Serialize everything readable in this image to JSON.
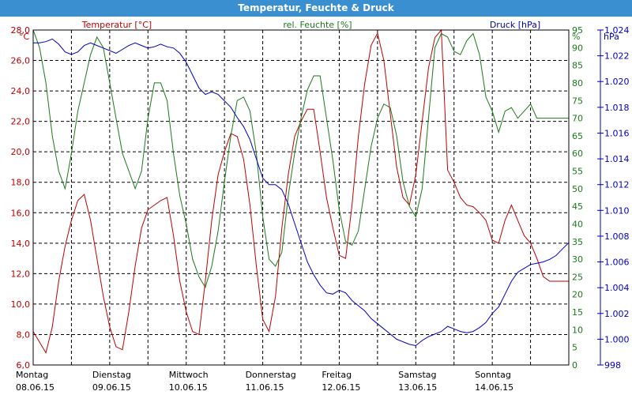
{
  "window": {
    "title": "Temperatur, Feuchte & Druck"
  },
  "chart_data": {
    "type": "line",
    "title": "Temperatur, Feuchte & Druck",
    "grid": true,
    "colors": {
      "temperature": "#c00000",
      "humidity": "#1a7a1a",
      "pressure": "#0000c0",
      "title_bar": "#3a8fd0"
    },
    "series_labels": {
      "temperature": "Temperatur [°C]",
      "humidity": "rel. Feuchte [%]",
      "pressure": "Druck [hPa]"
    },
    "axes": {
      "left": {
        "unit": "°C",
        "range": [
          6.0,
          28.0
        ],
        "ticks": [
          "6,0",
          "8,0",
          "10,0",
          "12,0",
          "14,0",
          "16,0",
          "18,0",
          "20,0",
          "22,0",
          "24,0",
          "26,0",
          "28,0"
        ]
      },
      "mid": {
        "unit": "%",
        "range": [
          0,
          95
        ],
        "ticks": [
          "0",
          "5",
          "10",
          "15",
          "20",
          "25",
          "30",
          "35",
          "40",
          "45",
          "50",
          "55",
          "60",
          "65",
          "70",
          "75",
          "80",
          "85",
          "90",
          "95"
        ]
      },
      "right": {
        "unit": "hPa",
        "range": [
          998,
          1024
        ],
        "ticks": [
          "998",
          "1.000",
          "1.002",
          "1.004",
          "1.006",
          "1.008",
          "1.010",
          "1.012",
          "1.014",
          "1.016",
          "1.018",
          "1.020",
          "1.022",
          "1.024"
        ]
      }
    },
    "days": [
      {
        "day": "Montag",
        "date": "08.06.15"
      },
      {
        "day": "Dienstag",
        "date": "09.06.15"
      },
      {
        "day": "Mittwoch",
        "date": "10.06.15"
      },
      {
        "day": "Donnerstag",
        "date": "11.06.15"
      },
      {
        "day": "Freitag",
        "date": "12.06.15"
      },
      {
        "day": "Samstag",
        "date": "13.06.15"
      },
      {
        "day": "Sonntag",
        "date": "14.06.15"
      }
    ],
    "x_hours": [
      0,
      2,
      4,
      6,
      8,
      10,
      12,
      14,
      16,
      18,
      20,
      22,
      24,
      26,
      28,
      30,
      32,
      34,
      36,
      38,
      40,
      42,
      44,
      46,
      48,
      50,
      52,
      54,
      56,
      58,
      60,
      62,
      64,
      66,
      68,
      70,
      72,
      74,
      76,
      78,
      80,
      82,
      84,
      86,
      88,
      90,
      92,
      94,
      96,
      98,
      100,
      102,
      104,
      106,
      108,
      110,
      112,
      114,
      116,
      118,
      120,
      122,
      124,
      126,
      128,
      130,
      132,
      134,
      136,
      138,
      140,
      142,
      144,
      146,
      148,
      150,
      152,
      154,
      156,
      158,
      160,
      162,
      164,
      166,
      168
    ],
    "series": [
      {
        "name": "Temperatur [°C]",
        "axis": "left",
        "values": [
          8.2,
          7.5,
          6.8,
          8.5,
          11.5,
          13.8,
          15.5,
          16.8,
          17.2,
          15.5,
          13.0,
          10.5,
          8.5,
          7.2,
          7.0,
          9.5,
          12.5,
          15.0,
          16.2,
          16.5,
          16.8,
          17.0,
          14.5,
          11.5,
          9.5,
          8.2,
          8.0,
          11.5,
          15.5,
          18.5,
          20.0,
          21.2,
          21.0,
          19.5,
          16.5,
          12.5,
          9.0,
          8.2,
          10.5,
          15.0,
          18.5,
          21.0,
          22.0,
          22.8,
          22.8,
          20.0,
          17.0,
          15.0,
          13.2,
          13.0,
          16.5,
          21.0,
          24.5,
          27.0,
          27.8,
          26.0,
          22.5,
          19.0,
          17.0,
          16.5,
          18.5,
          22.0,
          25.5,
          27.5,
          28.5,
          18.8,
          18.0,
          17.0,
          16.5,
          16.4,
          16.0,
          15.5,
          14.2,
          14.0,
          15.5,
          16.5,
          15.5,
          14.5,
          14.0,
          13.0,
          11.8,
          11.5,
          11.5,
          11.5,
          11.5
        ]
      },
      {
        "name": "rel. Feuchte [%]",
        "axis": "mid",
        "values": [
          97,
          90,
          80,
          65,
          55,
          50,
          60,
          72,
          80,
          88,
          93,
          90,
          80,
          70,
          60,
          55,
          50,
          55,
          70,
          80,
          80,
          75,
          60,
          48,
          40,
          30,
          25,
          22,
          28,
          38,
          52,
          65,
          75,
          76,
          72,
          60,
          42,
          30,
          28,
          32,
          48,
          60,
          70,
          78,
          82,
          82,
          70,
          58,
          44,
          35,
          34,
          38,
          50,
          62,
          70,
          74,
          73,
          65,
          52,
          45,
          42,
          50,
          70,
          90,
          94,
          93,
          89,
          88,
          92,
          94,
          88,
          76,
          72,
          66,
          72,
          73,
          70,
          72,
          74,
          70,
          70,
          70,
          70,
          70,
          70
        ]
      },
      {
        "name": "Druck [hPa]",
        "axis": "right",
        "values": [
          1023.0,
          1023.0,
          1023.1,
          1023.3,
          1022.9,
          1022.3,
          1022.1,
          1022.3,
          1022.8,
          1023.0,
          1022.8,
          1022.6,
          1022.4,
          1022.2,
          1022.5,
          1022.8,
          1023.0,
          1022.8,
          1022.6,
          1022.7,
          1022.9,
          1022.7,
          1022.6,
          1022.2,
          1021.5,
          1020.5,
          1019.5,
          1019.0,
          1019.2,
          1019.0,
          1018.5,
          1018.0,
          1017.2,
          1016.5,
          1015.5,
          1014.0,
          1012.5,
          1012.0,
          1012.0,
          1011.6,
          1010.5,
          1009.0,
          1007.5,
          1006.0,
          1005.0,
          1004.2,
          1003.6,
          1003.5,
          1003.8,
          1003.6,
          1003.0,
          1002.6,
          1002.2,
          1001.6,
          1001.2,
          1000.8,
          1000.4,
          1000.0,
          999.8,
          999.6,
          999.5,
          999.9,
          1000.2,
          1000.4,
          1000.6,
          1001.0,
          1000.8,
          1000.6,
          1000.5,
          1000.6,
          1000.9,
          1001.3,
          1002.0,
          1002.5,
          1003.5,
          1004.5,
          1005.2,
          1005.5,
          1005.8,
          1005.9,
          1006.0,
          1006.2,
          1006.5,
          1007.0,
          1007.5
        ]
      }
    ]
  }
}
